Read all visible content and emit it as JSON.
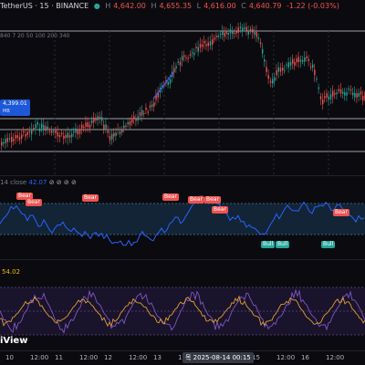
{
  "header": {
    "symbol": "TetherUS · 15 · BINANCE",
    "o_label": "H",
    "open": "4,642.00",
    "h_label": "H",
    "high": "4,655.35",
    "l_label": "L",
    "low": "4,616.00",
    "c_label": "C",
    "close": "4,640.79",
    "change": "-1.22 (-0.03%)"
  },
  "ma_legend": "840 7 20 50 100 200 340",
  "price_tag": "4,399.01",
  "price_tag_sub": "MB",
  "indicator": {
    "name": "14 close",
    "value": "42.07",
    "icons": [
      "eye-icon",
      "gear-icon",
      "close-icon",
      "more-icon"
    ],
    "labels": [
      {
        "type": "Bear",
        "x": 18,
        "y": 211
      },
      {
        "type": "Bear",
        "x": 28,
        "y": 218
      },
      {
        "type": "Bear",
        "x": 90,
        "y": 213
      },
      {
        "type": "Bear",
        "x": 178,
        "y": 212
      },
      {
        "type": "Bear",
        "x": 206,
        "y": 215
      },
      {
        "type": "Bear",
        "x": 224,
        "y": 215
      },
      {
        "type": "Bear",
        "x": 232,
        "y": 226
      },
      {
        "type": "Bear",
        "x": 365,
        "y": 229
      },
      {
        "type": "Bull",
        "x": 286,
        "y": 264
      },
      {
        "type": "Bull",
        "x": 302,
        "y": 264
      },
      {
        "type": "Bull",
        "x": 352,
        "y": 264
      }
    ]
  },
  "oscillator": {
    "value": "54.02"
  },
  "time_axis": {
    "ticks": [
      "10",
      "12:00",
      "11",
      "12:00",
      "12",
      "12:00",
      "13",
      "12:00",
      "14",
      "12:00",
      "15",
      "12:00",
      "16",
      "12:00"
    ],
    "cursor": "목 2025-08-14  00:15"
  },
  "watermark": "iView",
  "colors": {
    "up": "#26a69a",
    "down": "#ef5350",
    "indicator_line": "#2962ff",
    "band": "#1a3b57",
    "osc_a": "#e0a030",
    "osc_b": "#7e57c2"
  }
}
